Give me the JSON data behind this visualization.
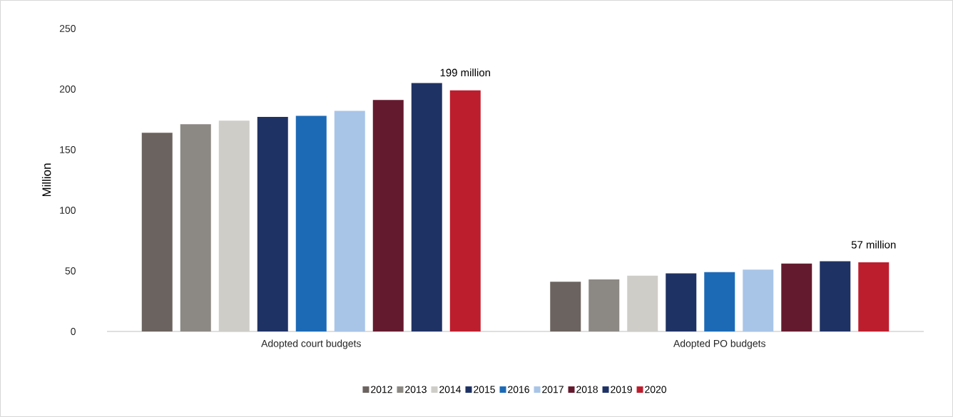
{
  "chart_data": {
    "type": "bar",
    "ylabel": "Million",
    "categories": [
      "Adopted court budgets",
      "Adopted PO budgets"
    ],
    "series": [
      {
        "name": "2012",
        "color": "#6b635f",
        "values": [
          164,
          41
        ]
      },
      {
        "name": "2013",
        "color": "#8c8984",
        "values": [
          171,
          43
        ]
      },
      {
        "name": "2014",
        "color": "#cfcdc8",
        "values": [
          174,
          46
        ]
      },
      {
        "name": "2015",
        "color": "#1f3264",
        "values": [
          177,
          48
        ]
      },
      {
        "name": "2016",
        "color": "#1c6ab6",
        "values": [
          178,
          49
        ]
      },
      {
        "name": "2017",
        "color": "#a8c5e8",
        "values": [
          182,
          51
        ]
      },
      {
        "name": "2018",
        "color": "#641a2e",
        "values": [
          191,
          56
        ]
      },
      {
        "name": "2019",
        "color": "#1f3264",
        "values": [
          205,
          58
        ]
      },
      {
        "name": "2020",
        "color": "#bd1e2e",
        "values": [
          199,
          57
        ]
      }
    ],
    "ylim": [
      0,
      250
    ],
    "yticks": [
      0,
      50,
      100,
      150,
      200,
      250
    ],
    "grid": false,
    "legend": "bottom",
    "annotations": [
      "199 million",
      "57 million"
    ]
  }
}
